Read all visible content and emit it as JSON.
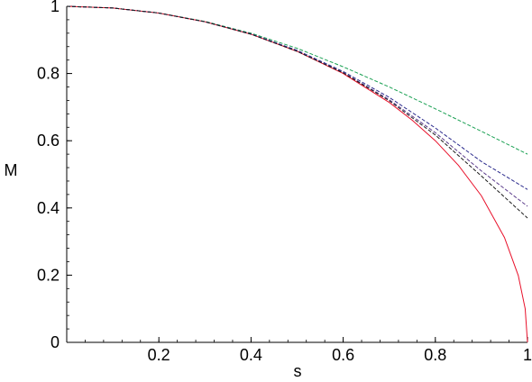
{
  "chart_data": {
    "type": "line",
    "xlabel": "s",
    "ylabel": "M",
    "xlim": [
      0,
      1
    ],
    "ylim": [
      0,
      1
    ],
    "grid": false,
    "x_ticks": [
      0.2,
      0.4,
      0.6,
      0.8,
      1
    ],
    "x_tick_labels": [
      "0.2",
      "0.4",
      "0.6",
      "0.8",
      "1"
    ],
    "y_ticks": [
      0,
      0.2,
      0.4,
      0.6,
      0.8,
      1
    ],
    "y_tick_labels": [
      "0",
      "0.2",
      "0.4",
      "0.6",
      "0.8",
      "1"
    ],
    "series": [
      {
        "style": "solid",
        "color": "#e8102a",
        "x": [
          0,
          0.1,
          0.2,
          0.3,
          0.4,
          0.5,
          0.6,
          0.7,
          0.75,
          0.8,
          0.85,
          0.9,
          0.95,
          0.98,
          0.995,
          1.0
        ],
        "y": [
          1.0,
          0.995,
          0.98,
          0.954,
          0.917,
          0.866,
          0.8,
          0.714,
          0.661,
          0.6,
          0.527,
          0.436,
          0.312,
          0.199,
          0.1,
          0.0
        ]
      },
      {
        "style": "dashed",
        "color": "#1aa053",
        "x": [
          0,
          0.1,
          0.2,
          0.3,
          0.4,
          0.5,
          0.6,
          0.7,
          0.8,
          0.9,
          1.0
        ],
        "y": [
          1.0,
          0.995,
          0.98,
          0.955,
          0.92,
          0.875,
          0.82,
          0.76,
          0.695,
          0.628,
          0.56
        ]
      },
      {
        "style": "dashed",
        "color": "#2a2a8c",
        "x": [
          0,
          0.1,
          0.2,
          0.3,
          0.4,
          0.5,
          0.6,
          0.7,
          0.8,
          0.9,
          1.0
        ],
        "y": [
          1.0,
          0.995,
          0.98,
          0.954,
          0.918,
          0.869,
          0.806,
          0.729,
          0.638,
          0.538,
          0.455
        ]
      },
      {
        "style": "dashed",
        "color": "#5a3a8a",
        "x": [
          0,
          0.1,
          0.2,
          0.3,
          0.4,
          0.5,
          0.6,
          0.7,
          0.8,
          0.9,
          1.0
        ],
        "y": [
          1.0,
          0.995,
          0.98,
          0.954,
          0.917,
          0.867,
          0.803,
          0.722,
          0.624,
          0.51,
          0.405
        ]
      },
      {
        "style": "dashed",
        "color": "#1a1a1a",
        "x": [
          0,
          0.1,
          0.2,
          0.3,
          0.4,
          0.5,
          0.6,
          0.7,
          0.8,
          0.9,
          1.0
        ],
        "y": [
          1.0,
          0.995,
          0.98,
          0.954,
          0.917,
          0.866,
          0.802,
          0.719,
          0.617,
          0.495,
          0.37
        ]
      }
    ]
  }
}
